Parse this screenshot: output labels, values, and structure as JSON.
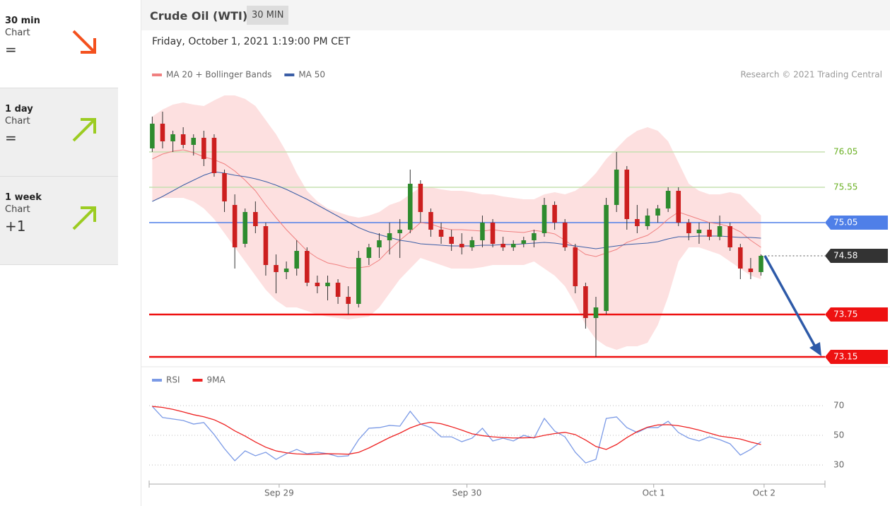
{
  "sidebar": [
    {
      "period": "30 min",
      "label": "Chart",
      "change": "="
    },
    {
      "period": "1 day",
      "label": "Chart",
      "change": "="
    },
    {
      "period": "1 week",
      "label": "Chart",
      "change": "+1"
    }
  ],
  "header": {
    "title": "Crude Oil (WTI)",
    "interval": "30 MIN",
    "date": "Friday, October 1, 2021 1:19:00 PM CET"
  },
  "chart_data": [
    {
      "type": "candlestick",
      "credit": "Research © 2021 Trading Central",
      "x": [
        0,
        1,
        2,
        3,
        4,
        5,
        6,
        7,
        8,
        9,
        10,
        11,
        12,
        13,
        14,
        15,
        16,
        17,
        18,
        19,
        20,
        21,
        22,
        23,
        24,
        25,
        26,
        27,
        28,
        29,
        30,
        31,
        32,
        33,
        34,
        35,
        36,
        37,
        38,
        39,
        40,
        41,
        42,
        43,
        44,
        45,
        46,
        47,
        48,
        49,
        50,
        51,
        52,
        53,
        54,
        55,
        56,
        57,
        58,
        59
      ],
      "xlim": [
        -0.3,
        65.2
      ],
      "ylim": [
        73.05,
        76.8
      ],
      "open": [
        76.1,
        76.45,
        76.2,
        76.3,
        76.15,
        76.25,
        76.25,
        75.75,
        75.3,
        74.75,
        75.2,
        75.0,
        74.45,
        74.35,
        74.4,
        74.65,
        74.2,
        74.15,
        74.2,
        74.0,
        73.9,
        74.55,
        74.7,
        74.8,
        74.9,
        74.95,
        75.6,
        75.2,
        74.95,
        74.85,
        74.75,
        74.7,
        74.8,
        75.05,
        74.75,
        74.7,
        74.75,
        74.8,
        74.9,
        75.3,
        75.05,
        74.7,
        74.15,
        73.7,
        73.8,
        75.3,
        75.8,
        75.1,
        75.0,
        75.15,
        75.25,
        75.5,
        75.05,
        74.9,
        74.95,
        74.85,
        75.0,
        74.7,
        74.4,
        74.35
      ],
      "high": [
        76.55,
        76.62,
        76.35,
        76.4,
        76.3,
        76.35,
        76.3,
        75.8,
        75.45,
        75.25,
        75.35,
        75.05,
        74.6,
        74.5,
        74.8,
        74.7,
        74.3,
        74.3,
        74.25,
        74.15,
        74.65,
        74.75,
        74.9,
        75.05,
        75.1,
        75.8,
        75.65,
        75.25,
        75.05,
        74.95,
        74.9,
        74.85,
        75.15,
        75.1,
        74.85,
        74.8,
        74.85,
        74.95,
        75.4,
        75.35,
        75.1,
        74.75,
        74.2,
        74.0,
        75.4,
        76.05,
        75.85,
        75.3,
        75.25,
        75.3,
        75.55,
        75.55,
        75.1,
        75.05,
        75.05,
        75.15,
        75.05,
        74.75,
        74.55,
        74.6
      ],
      "low": [
        76.05,
        76.1,
        76.05,
        76.1,
        76.0,
        75.85,
        75.7,
        75.2,
        74.4,
        74.7,
        74.9,
        74.3,
        74.05,
        74.25,
        74.3,
        74.15,
        74.05,
        73.95,
        73.9,
        73.75,
        73.85,
        74.45,
        74.55,
        74.6,
        74.55,
        74.9,
        75.05,
        74.85,
        74.75,
        74.65,
        74.6,
        74.65,
        74.7,
        74.7,
        74.65,
        74.65,
        74.7,
        74.7,
        74.85,
        74.95,
        74.65,
        74.05,
        73.55,
        73.15,
        73.75,
        75.2,
        74.95,
        74.9,
        74.95,
        75.05,
        75.2,
        75.0,
        74.8,
        74.75,
        74.8,
        74.8,
        74.65,
        74.25,
        74.25,
        74.3
      ],
      "close": [
        76.45,
        76.2,
        76.3,
        76.15,
        76.25,
        75.95,
        75.75,
        75.35,
        74.7,
        75.2,
        75.0,
        74.45,
        74.35,
        74.4,
        74.65,
        74.2,
        74.15,
        74.2,
        74.0,
        73.9,
        74.55,
        74.7,
        74.8,
        74.9,
        74.95,
        75.6,
        75.2,
        74.95,
        74.85,
        74.75,
        74.7,
        74.8,
        75.05,
        74.75,
        74.7,
        74.75,
        74.8,
        74.9,
        75.3,
        75.05,
        74.7,
        74.15,
        73.7,
        73.85,
        75.3,
        75.8,
        75.1,
        75.0,
        75.15,
        75.25,
        75.5,
        75.05,
        74.9,
        74.95,
        74.85,
        75.0,
        74.7,
        74.4,
        74.35,
        74.58
      ],
      "series": [
        {
          "name": "MA 20 + Bollinger Bands",
          "color": "#f08080",
          "band_color": "#fde0e0",
          "values": [
            75.95,
            76.02,
            76.06,
            76.08,
            76.04,
            75.98,
            75.94,
            75.88,
            75.78,
            75.65,
            75.5,
            75.3,
            75.12,
            74.95,
            74.8,
            74.65,
            74.55,
            74.48,
            74.45,
            74.41,
            74.41,
            74.43,
            74.52,
            74.67,
            74.8,
            74.92,
            75.05,
            75.03,
            74.98,
            74.95,
            74.95,
            74.94,
            74.93,
            74.95,
            74.93,
            74.92,
            74.91,
            74.94,
            74.92,
            74.89,
            74.8,
            74.7,
            74.6,
            74.57,
            74.62,
            74.67,
            74.77,
            74.82,
            74.87,
            74.97,
            75.1,
            75.2,
            75.15,
            75.1,
            75.05,
            75.03,
            74.99,
            74.92,
            74.8,
            74.7
          ],
          "upper": [
            76.55,
            76.65,
            76.72,
            76.75,
            76.72,
            76.7,
            76.78,
            76.85,
            76.85,
            76.8,
            76.7,
            76.5,
            76.3,
            76.05,
            75.75,
            75.5,
            75.35,
            75.25,
            75.2,
            75.15,
            75.12,
            75.15,
            75.2,
            75.3,
            75.35,
            75.45,
            75.55,
            75.55,
            75.52,
            75.5,
            75.5,
            75.48,
            75.45,
            75.45,
            75.42,
            75.4,
            75.38,
            75.38,
            75.45,
            75.48,
            75.45,
            75.5,
            75.6,
            75.75,
            75.95,
            76.1,
            76.25,
            76.35,
            76.4,
            76.35,
            76.2,
            75.9,
            75.6,
            75.5,
            75.45,
            75.45,
            75.48,
            75.45,
            75.3,
            75.15
          ],
          "lower": [
            75.35,
            75.4,
            75.4,
            75.4,
            75.35,
            75.25,
            75.1,
            74.9,
            74.7,
            74.5,
            74.3,
            74.1,
            73.95,
            73.85,
            73.85,
            73.8,
            73.75,
            73.72,
            73.7,
            73.68,
            73.7,
            73.72,
            73.85,
            74.05,
            74.25,
            74.4,
            74.55,
            74.5,
            74.45,
            74.4,
            74.4,
            74.4,
            74.42,
            74.45,
            74.45,
            74.45,
            74.45,
            74.5,
            74.4,
            74.3,
            74.15,
            73.9,
            73.6,
            73.4,
            73.3,
            73.25,
            73.3,
            73.3,
            73.35,
            73.6,
            74.0,
            74.5,
            74.7,
            74.7,
            74.65,
            74.6,
            74.5,
            74.4,
            74.3,
            74.25
          ]
        },
        {
          "name": "MA 50",
          "color": "#3b5ea6",
          "values": [
            75.35,
            75.42,
            75.5,
            75.58,
            75.65,
            75.72,
            75.77,
            75.75,
            75.72,
            75.7,
            75.67,
            75.63,
            75.58,
            75.52,
            75.45,
            75.38,
            75.3,
            75.22,
            75.14,
            75.06,
            74.98,
            74.92,
            74.88,
            74.84,
            74.8,
            74.78,
            74.75,
            74.74,
            74.73,
            74.72,
            74.72,
            74.72,
            74.73,
            74.73,
            74.74,
            74.74,
            74.75,
            74.76,
            74.77,
            74.76,
            74.74,
            74.72,
            74.7,
            74.68,
            74.7,
            74.72,
            74.74,
            74.75,
            74.76,
            74.78,
            74.82,
            74.85,
            74.85,
            74.86,
            74.86,
            74.86,
            74.85,
            74.84,
            74.84,
            74.83
          ]
        }
      ],
      "levels": [
        {
          "value": 76.05,
          "color": "#c5e0b0",
          "label_color": "#6ab023",
          "style": "text"
        },
        {
          "value": 75.55,
          "color": "#c5e0b0",
          "label_color": "#6ab023",
          "style": "text"
        },
        {
          "value": 75.05,
          "color": "#4f7fe8",
          "label_color": "#4f7fe8",
          "style": "box"
        },
        {
          "value": 74.58,
          "color": "#888888",
          "label_color": "#333333",
          "style": "box",
          "dotted": true
        },
        {
          "value": 73.75,
          "color": "#ee1111",
          "label_color": "#ee1111",
          "style": "box"
        },
        {
          "value": 73.15,
          "color": "#ee1111",
          "label_color": "#ee1111",
          "style": "box"
        }
      ],
      "grid": false
    },
    {
      "type": "line",
      "xlim": [
        -0.3,
        65.2
      ],
      "ylim": [
        20,
        85
      ],
      "yticks": [
        30,
        50,
        70
      ],
      "grid": true,
      "xticks": [
        {
          "value": 12.3,
          "label": "Sep 29"
        },
        {
          "value": 30.5,
          "label": "Sep 30"
        },
        {
          "value": 48.6,
          "label": "Oct 1"
        },
        {
          "value": 59.3,
          "label": "Oct 2"
        }
      ],
      "x": [
        0,
        1,
        2,
        3,
        4,
        5,
        6,
        7,
        8,
        9,
        10,
        11,
        12,
        13,
        14,
        15,
        16,
        17,
        18,
        19,
        20,
        21,
        22,
        23,
        24,
        25,
        26,
        27,
        28,
        29,
        30,
        31,
        32,
        33,
        34,
        35,
        36,
        37,
        38,
        39,
        40,
        41,
        42,
        43,
        44,
        45,
        46,
        47,
        48,
        49,
        50,
        51,
        52,
        53,
        54,
        55,
        56,
        57,
        58,
        59
      ],
      "series": [
        {
          "name": "RSI",
          "color": "#7b9ae6",
          "values": [
            69.5,
            62,
            61,
            60,
            57.6,
            58.6,
            50.5,
            41,
            32.9,
            39.5,
            36.2,
            38.6,
            33.8,
            37.6,
            40.5,
            37.6,
            38.6,
            37.6,
            35.7,
            36.2,
            47.1,
            54.8,
            55.2,
            56.7,
            56.2,
            66.2,
            57.6,
            55.2,
            49,
            49,
            45.7,
            48.1,
            54.8,
            46.2,
            48.1,
            46.2,
            50,
            48.1,
            61.4,
            52.9,
            49,
            38.6,
            31.4,
            33.8,
            61.4,
            62.4,
            55.2,
            51.9,
            55.2,
            55.2,
            59.5,
            51.9,
            48.1,
            46.2,
            49,
            47.1,
            44.3,
            36.7,
            40.5,
            45.7
          ]
        },
        {
          "name": "9MA",
          "color": "#ee2222",
          "values": [
            69.5,
            68.8,
            67.5,
            65.8,
            63.9,
            62.5,
            60.5,
            57.2,
            53.0,
            49.5,
            45.5,
            42.0,
            39.5,
            38.2,
            37.5,
            37.2,
            37.3,
            37.6,
            37.5,
            37.3,
            38.5,
            41.5,
            45.0,
            48.5,
            51.5,
            55.0,
            57.5,
            58.8,
            57.8,
            55.8,
            53.5,
            51.0,
            49.8,
            49.0,
            48.5,
            48.2,
            48.3,
            48.5,
            50.0,
            51.2,
            52.0,
            50.5,
            46.8,
            42.5,
            40.5,
            43.8,
            48.5,
            52.5,
            55.5,
            57.0,
            57.2,
            56.5,
            55.2,
            53.5,
            51.5,
            49.5,
            48.5,
            47.5,
            45.5,
            43.8
          ]
        }
      ]
    }
  ]
}
